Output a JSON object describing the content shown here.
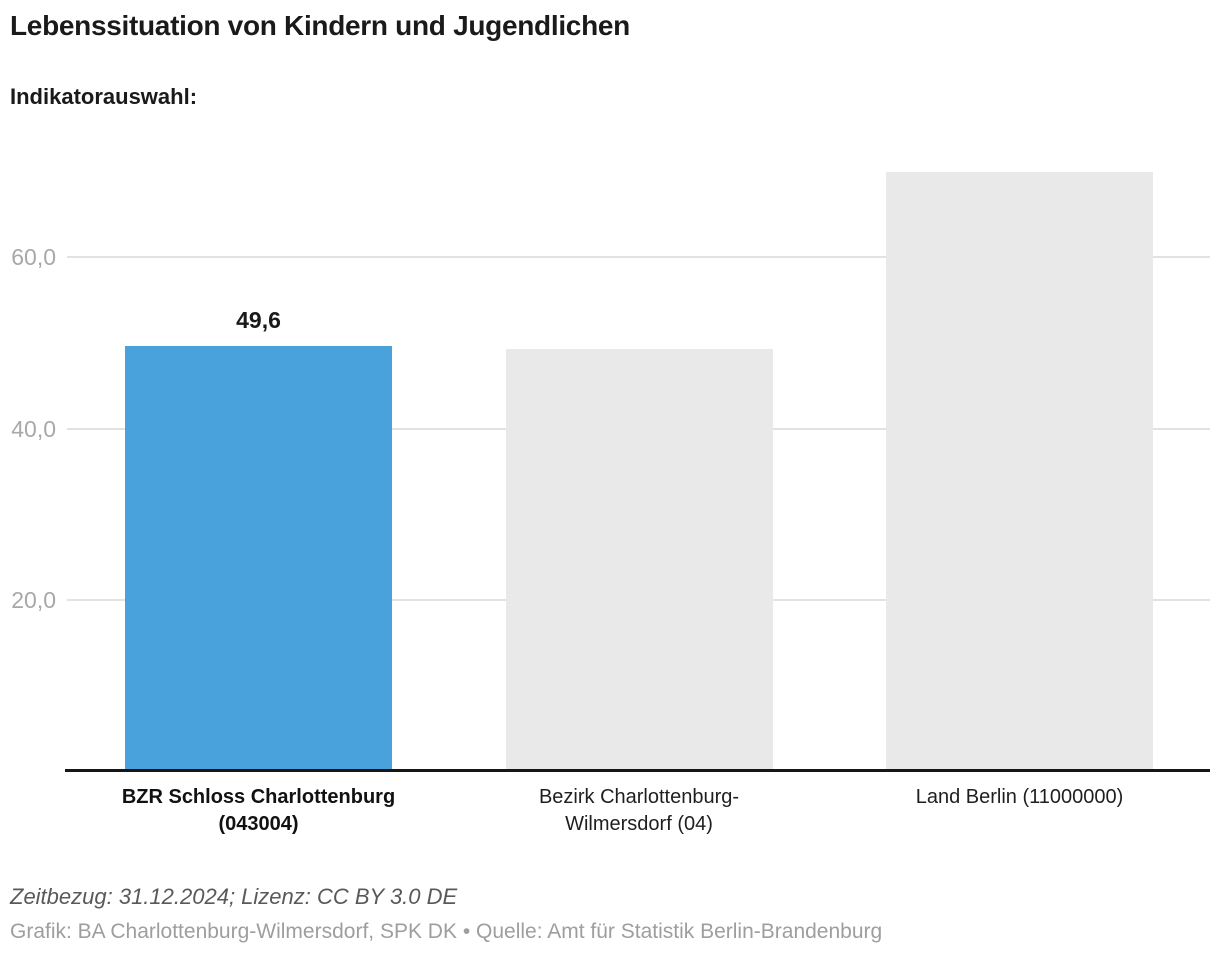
{
  "header": {
    "title": "Lebenssituation von Kindern und Jugendlichen",
    "subtitle": "Indikatorauswahl:"
  },
  "chart_data": {
    "type": "bar",
    "title": "Lebenssituation von Kindern und Jugendlichen",
    "categories": [
      "BZR Schloss Charlottenburg (043004)",
      "Bezirk Charlottenburg-Wilmersdorf (04)",
      "Land Berlin (11000000)"
    ],
    "values": [
      49.6,
      49.3,
      69.9
    ],
    "value_labels": [
      "49,6",
      "",
      ""
    ],
    "highlight_index": 0,
    "xlabel": "",
    "ylabel": "",
    "ylim": [
      0,
      70.5
    ],
    "grid": true,
    "legend": false,
    "y_ticks": [
      {
        "value": 20,
        "label": "20,0"
      },
      {
        "value": 40,
        "label": "40,0"
      },
      {
        "value": 60,
        "label": "60,0"
      }
    ],
    "colors": {
      "highlight_bar": "#4aa2dc",
      "default_bar": "#e9e9e9",
      "gridline": "#e2e2e2",
      "tick_label": "#a8a8a8",
      "axis_line": "#161616"
    }
  },
  "footer": {
    "meta_line": "Zeitbezug: 31.12.2024; Lizenz: CC BY 3.0 DE",
    "credit_line": "Grafik: BA Charlottenburg-Wilmersdorf, SPK DK • Quelle: Amt für Statistik Berlin-Brandenburg"
  }
}
